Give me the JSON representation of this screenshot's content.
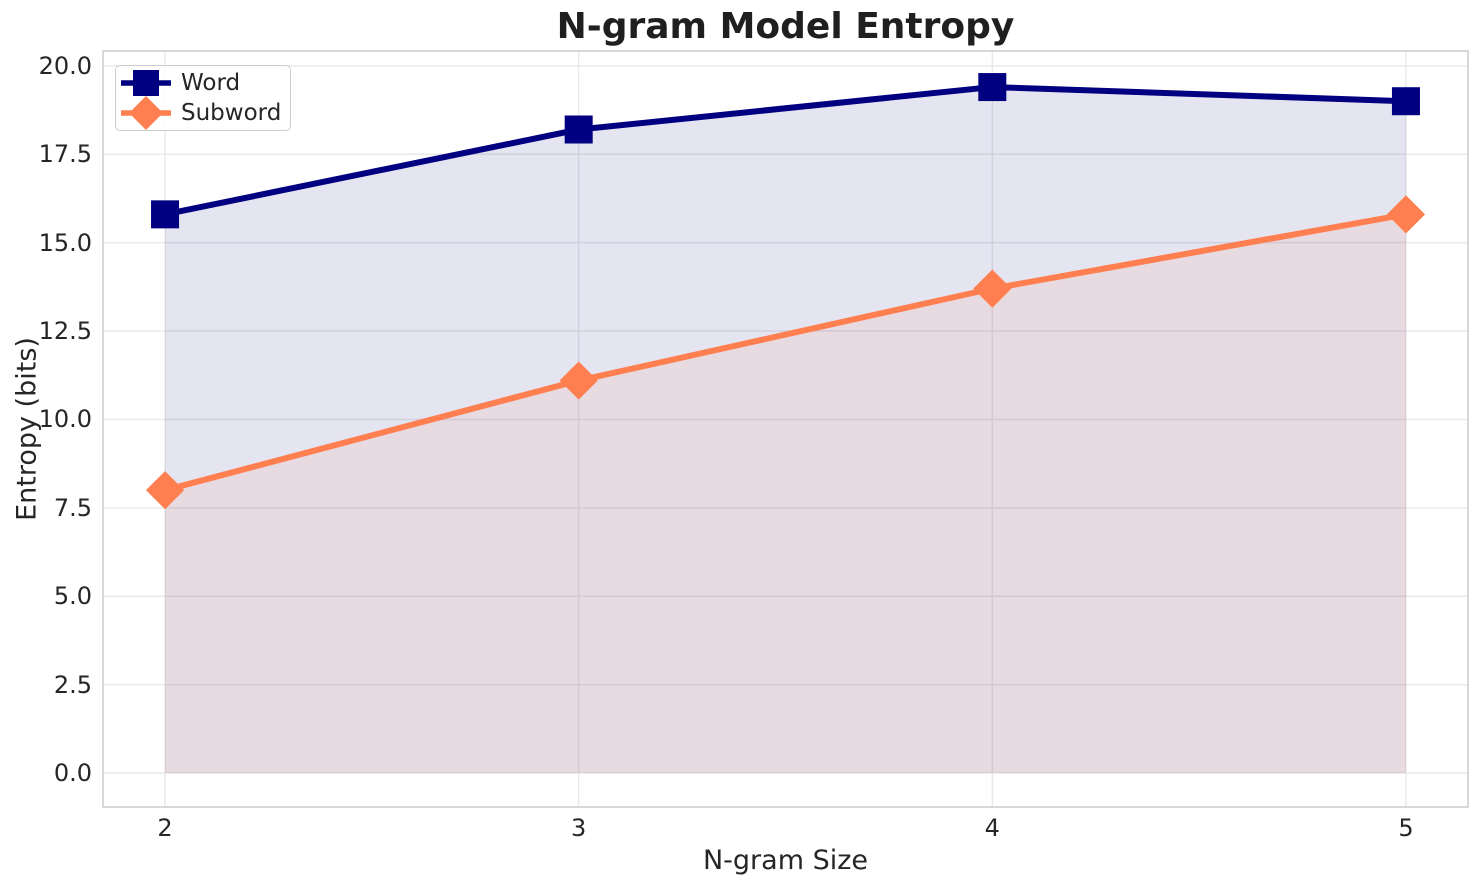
{
  "figure": {
    "title": "N-gram Model Entropy",
    "xlabel": "N-gram Size",
    "ylabel": "Entropy (bits)"
  },
  "axes": {
    "x_tick_labels": [
      "2",
      "3",
      "4",
      "5"
    ],
    "y_tick_labels": [
      "0.0",
      "2.5",
      "5.0",
      "7.5",
      "10.0",
      "12.5",
      "15.0",
      "17.5",
      "20.0"
    ]
  },
  "legend": {
    "items": [
      {
        "label": "Word",
        "marker": "square",
        "color": "#000080"
      },
      {
        "label": "Subword",
        "marker": "diamond",
        "color": "#FF7F50"
      }
    ]
  },
  "colors": {
    "word_series": "#000080",
    "subword_series": "#FF7F50",
    "gridline": "#e9e9e9",
    "spine": "#cccccc",
    "text": "#262626",
    "background": "#ffffff"
  },
  "chart_data": {
    "type": "line",
    "title": "N-gram Model Entropy",
    "xlabel": "N-gram Size",
    "ylabel": "Entropy (bits)",
    "x": [
      2,
      3,
      4,
      5
    ],
    "series": [
      {
        "name": "Word",
        "values": [
          15.8,
          18.2,
          19.4,
          19.0
        ],
        "color": "#000080",
        "marker": "square",
        "fill_to_zero": true,
        "fill_alpha": 0.1
      },
      {
        "name": "Subword",
        "values": [
          8.0,
          11.1,
          13.7,
          15.8
        ],
        "color": "#FF7F50",
        "marker": "diamond",
        "fill_to_zero": true,
        "fill_alpha": 0.1
      }
    ],
    "xlim": [
      1.85,
      5.15
    ],
    "ylim": [
      -0.96,
      20.42
    ],
    "grid": true,
    "legend_position": "upper left"
  }
}
